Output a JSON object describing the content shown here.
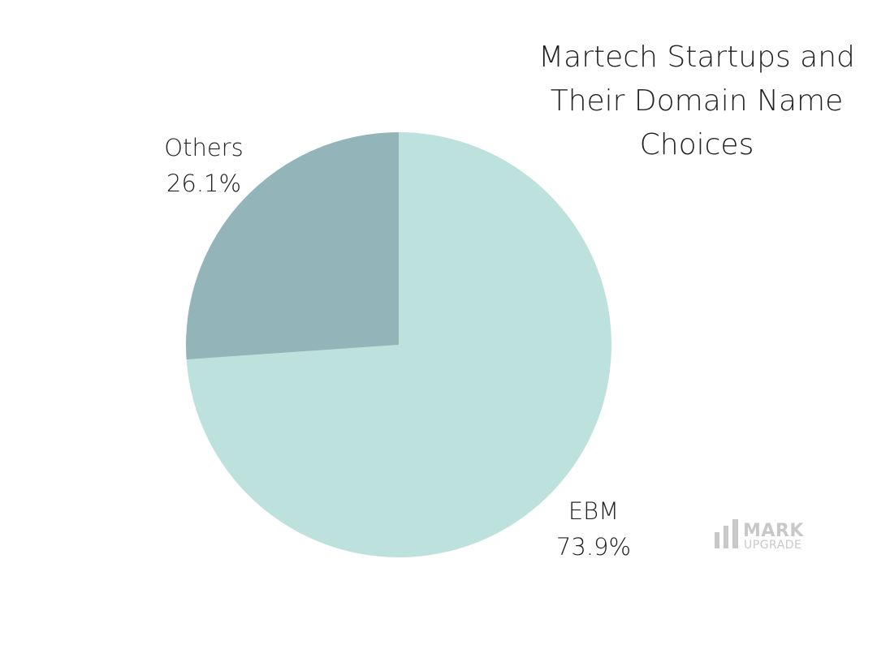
{
  "chart_data": {
    "type": "pie",
    "title": "Martech Startups and Their Domain Name Choices",
    "title_lines": [
      "Martech Startups and",
      "Their Domain Name",
      "Choices"
    ],
    "slices": [
      {
        "label": "EBM",
        "value": 73.9,
        "value_label": "73.9%",
        "color": "#bde1dd"
      },
      {
        "label": "Others",
        "value": 26.1,
        "value_label": "26.1%",
        "color": "#93b5b9"
      }
    ],
    "start_angle": "12 o'clock",
    "direction": "clockwise",
    "legend": "none"
  },
  "logo": {
    "name": "MARK",
    "sub": "UPGRADE",
    "color": "#c8c8c8",
    "icon": "bar-chart-icon"
  }
}
